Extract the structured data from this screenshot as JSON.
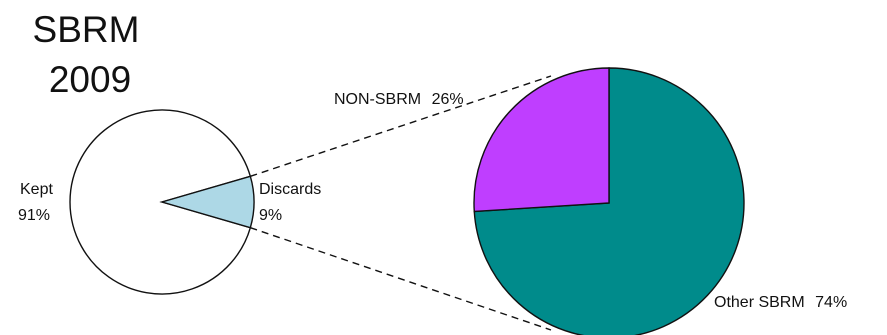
{
  "chart_data": [
    {
      "type": "pie",
      "title_lines": [
        "SBRM",
        "2009"
      ],
      "slices": [
        {
          "label": "Kept",
          "value": 91,
          "value_text": "91%",
          "color": "#ffffff"
        },
        {
          "label": "Discards",
          "value": 9,
          "value_text": "9%",
          "color": "#add8e6"
        }
      ]
    },
    {
      "type": "pie",
      "slices": [
        {
          "label": "Other SBRM",
          "value": 74,
          "value_text": "74%",
          "color": "#008b8b"
        },
        {
          "label": "NON-SBRM",
          "value": 26,
          "value_text": "26%",
          "color": "#bf3eff"
        }
      ]
    }
  ],
  "connector": {
    "style": "dashed",
    "from_slice": "Discards"
  },
  "colors": {
    "outline": "#111111",
    "text": "#111111",
    "background": "#ffffff"
  }
}
